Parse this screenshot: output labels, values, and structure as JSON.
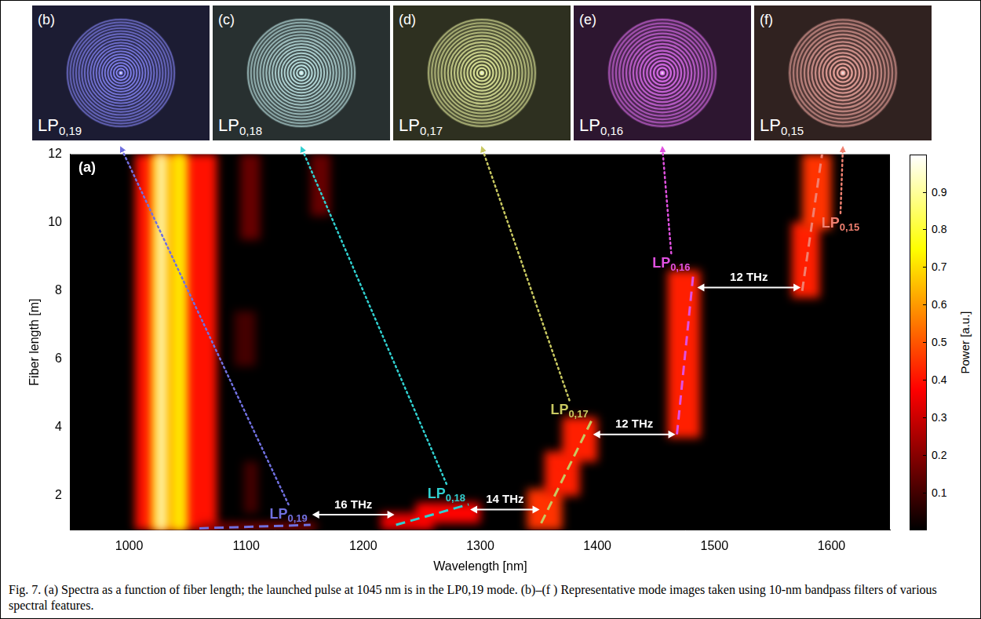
{
  "chart_data": {
    "type": "heatmap",
    "panel_label": "(a)",
    "x_label": "Wavelength [nm]",
    "y_label": "Fiber length [m]",
    "xlim": [
      950,
      1650
    ],
    "xticks": [
      1000,
      1100,
      1200,
      1300,
      1400,
      1500,
      1600
    ],
    "ylim": [
      1,
      12
    ],
    "yticks": [
      2,
      4,
      6,
      8,
      10,
      12
    ],
    "grid": false,
    "features": [
      {
        "x": [
          1005,
          1075
        ],
        "y": [
          1,
          12
        ],
        "power": 0.4
      },
      {
        "x": [
          1018,
          1050
        ],
        "y": [
          1,
          12
        ],
        "power": 0.65
      },
      {
        "x": [
          1024,
          1031
        ],
        "y": [
          1,
          12
        ],
        "power": 0.95
      },
      {
        "x": [
          1040,
          1046
        ],
        "y": [
          1,
          12
        ],
        "power": 0.75
      },
      {
        "x": [
          1060,
          1160
        ],
        "y": [
          1,
          1.2
        ],
        "power": 0.22
      },
      {
        "x": [
          1215,
          1260
        ],
        "y": [
          1,
          1.5
        ],
        "power": 0.35
      },
      {
        "x": [
          1245,
          1300
        ],
        "y": [
          1.2,
          1.8
        ],
        "power": 0.38
      },
      {
        "x": [
          1340,
          1370
        ],
        "y": [
          1,
          2.2
        ],
        "power": 0.45
      },
      {
        "x": [
          1355,
          1385
        ],
        "y": [
          2,
          3.3
        ],
        "power": 0.42
      },
      {
        "x": [
          1370,
          1400
        ],
        "y": [
          3,
          4.3
        ],
        "power": 0.42
      },
      {
        "x": [
          1460,
          1488
        ],
        "y": [
          3.7,
          8.6
        ],
        "power": 0.42
      },
      {
        "x": [
          1566,
          1590
        ],
        "y": [
          7.8,
          10
        ],
        "power": 0.42
      },
      {
        "x": [
          1575,
          1600
        ],
        "y": [
          9.8,
          12
        ],
        "power": 0.45
      },
      {
        "x": [
          1095,
          1112
        ],
        "y": [
          9.5,
          12
        ],
        "power": 0.15
      },
      {
        "x": [
          1155,
          1172
        ],
        "y": [
          10.2,
          12
        ],
        "power": 0.15
      },
      {
        "x": [
          1090,
          1108
        ],
        "y": [
          5.8,
          7.4
        ],
        "power": 0.1
      },
      {
        "x": [
          1098,
          1110
        ],
        "y": [
          1.5,
          3
        ],
        "power": 0.1
      }
    ],
    "series": [
      {
        "name": "LP0,19",
        "color": "#7070e0",
        "line_style": "dashed",
        "x": [
          1060,
          1155
        ],
        "y": [
          1.05,
          1.15
        ]
      },
      {
        "name": "LP0,18",
        "color": "#30d0d0",
        "line_style": "dashed",
        "x": [
          1228,
          1290
        ],
        "y": [
          1.15,
          1.75
        ]
      },
      {
        "name": "LP0,17",
        "color": "#c8c860",
        "line_style": "dashed",
        "x": [
          1352,
          1395
        ],
        "y": [
          1.2,
          4.2
        ]
      },
      {
        "name": "LP0,16",
        "color": "#e050e0",
        "line_style": "dashed",
        "x": [
          1468,
          1482
        ],
        "y": [
          3.8,
          8.5
        ]
      },
      {
        "name": "LP0,15",
        "color": "#f08070",
        "line_style": "dashed",
        "x": [
          1575,
          1592
        ],
        "y": [
          8.0,
          12
        ]
      }
    ],
    "annotations": [
      {
        "text": "16 THz",
        "x": [
          1155,
          1228
        ],
        "y": 1.45
      },
      {
        "text": "14 THz",
        "x": [
          1290,
          1352
        ],
        "y": 1.6
      },
      {
        "text": "12 THz",
        "x": [
          1395,
          1468
        ],
        "y": 3.8
      },
      {
        "text": "12 THz",
        "x": [
          1484,
          1575
        ],
        "y": 8.1
      }
    ],
    "colorbar": {
      "label": "Power [a.u.]",
      "range": [
        0,
        1
      ],
      "ticks": [
        0.1,
        0.2,
        0.3,
        0.4,
        0.5,
        0.6,
        0.7,
        0.8,
        0.9
      ]
    }
  },
  "panels": [
    {
      "label": "(b)",
      "mode": "LP0,19",
      "color": "#8a8aff"
    },
    {
      "label": "(c)",
      "mode": "LP0,18",
      "color": "#c8f0f0"
    },
    {
      "label": "(d)",
      "mode": "LP0,17",
      "color": "#e8f0a0"
    },
    {
      "label": "(e)",
      "mode": "LP0,16",
      "color": "#e070f0"
    },
    {
      "label": "(f)",
      "mode": "LP0,15",
      "color": "#f0a8a0"
    }
  ],
  "caption": "Fig. 7. (a) Spectra as a function of fiber length; the launched pulse at 1045 nm is in the LP0,19 mode. (b)–(f ) Representative mode images taken using 10-nm bandpass filters of various spectral features."
}
